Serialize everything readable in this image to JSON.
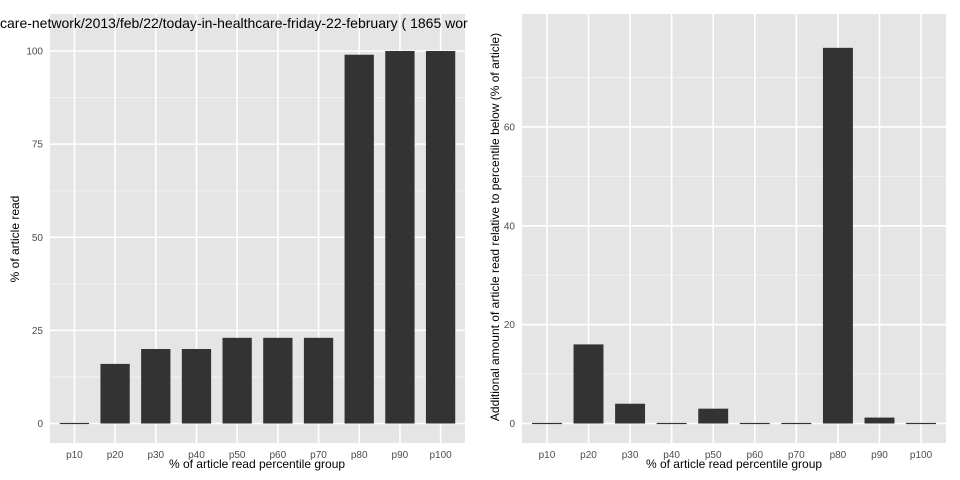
{
  "colors": {
    "panel_background": "#e5e5e5",
    "grid_major": "#ffffff",
    "grid_minor": "#f2f2f2",
    "bar_fill": "#333333",
    "tick_text": "#4d4d4d"
  },
  "chart_data": [
    {
      "type": "bar",
      "title": "care-network/2013/feb/22/today-in-healthcare-friday-22-february ( 1865 wor",
      "xlabel": "% of article read percentile group",
      "ylabel": "% of article read",
      "categories": [
        "p10",
        "p20",
        "p30",
        "p40",
        "p50",
        "p60",
        "p70",
        "p80",
        "p90",
        "p100"
      ],
      "values": [
        0,
        16,
        20,
        20,
        23,
        23,
        23,
        99,
        100,
        100
      ],
      "ylim": [
        0,
        100
      ],
      "yticks": [
        0,
        25,
        50,
        75,
        100
      ],
      "grid": true,
      "legend": "none"
    },
    {
      "type": "bar",
      "title": "",
      "xlabel": "% of article read percentile group",
      "ylabel": "Additional amount of article read relative to percentile below (% of article)",
      "categories": [
        "p10",
        "p20",
        "p30",
        "p40",
        "p50",
        "p60",
        "p70",
        "p80",
        "p90",
        "p100"
      ],
      "values": [
        0,
        16,
        4,
        0,
        3,
        0,
        0,
        76,
        1.2,
        0
      ],
      "ylim": [
        0,
        79
      ],
      "yticks": [
        0,
        20,
        40,
        60
      ],
      "grid": true,
      "legend": "none"
    }
  ]
}
